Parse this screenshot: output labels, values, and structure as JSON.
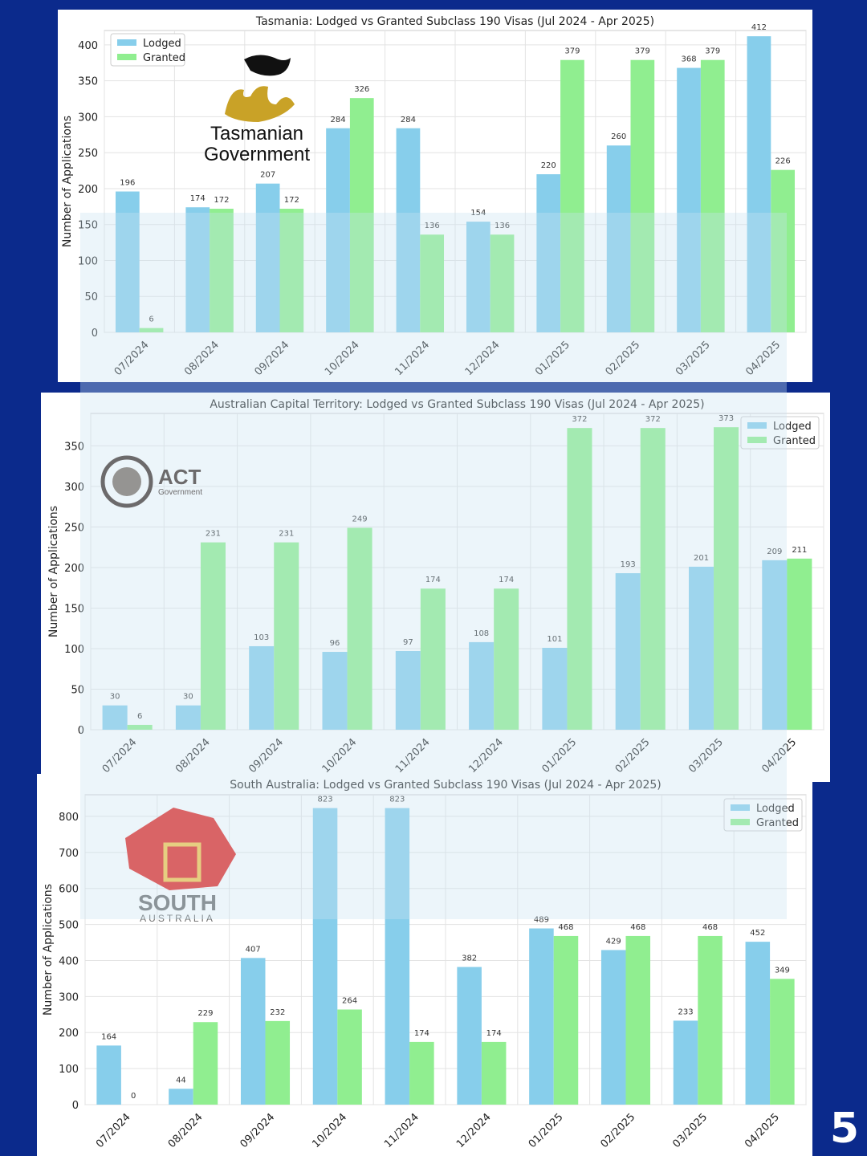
{
  "colors": {
    "lodged": "#87CEEB",
    "granted": "#90EE90",
    "background": "#0b2a8c"
  },
  "page_number": "5",
  "logos": [
    {
      "lines": [
        "Tasmanian",
        "Government"
      ]
    },
    {
      "lines": [
        "ACT",
        "Government"
      ]
    },
    {
      "lines": [
        "SOUTH",
        "AUSTRALIA"
      ]
    }
  ],
  "chart_data": [
    {
      "type": "bar",
      "title": "Tasmania: Lodged vs Granted Subclass 190 Visas (Jul 2024 - Apr 2025)",
      "xlabel": "",
      "ylabel": "Number of Applications",
      "categories": [
        "07/2024",
        "08/2024",
        "09/2024",
        "10/2024",
        "11/2024",
        "12/2024",
        "01/2025",
        "02/2025",
        "03/2025",
        "04/2025"
      ],
      "series": [
        {
          "name": "Lodged",
          "values": [
            196,
            174,
            207,
            284,
            284,
            154,
            220,
            260,
            368,
            412
          ]
        },
        {
          "name": "Granted",
          "values": [
            6,
            172,
            172,
            326,
            136,
            136,
            379,
            379,
            379,
            226
          ]
        }
      ],
      "ylim": [
        0,
        420
      ],
      "yticks": [
        0,
        50,
        100,
        150,
        200,
        250,
        300,
        350,
        400
      ],
      "grid": true,
      "legend": "top-left"
    },
    {
      "type": "bar",
      "title": "Australian Capital Territory: Lodged vs Granted Subclass 190 Visas (Jul 2024 - Apr 2025)",
      "xlabel": "",
      "ylabel": "Number of Applications",
      "categories": [
        "07/2024",
        "08/2024",
        "09/2024",
        "10/2024",
        "11/2024",
        "12/2024",
        "01/2025",
        "02/2025",
        "03/2025",
        "04/2025"
      ],
      "series": [
        {
          "name": "Lodged",
          "values": [
            30,
            30,
            103,
            96,
            97,
            108,
            101,
            193,
            201,
            209
          ]
        },
        {
          "name": "Granted",
          "values": [
            6,
            231,
            231,
            249,
            174,
            174,
            372,
            372,
            373,
            211
          ]
        }
      ],
      "ylim": [
        0,
        390
      ],
      "yticks": [
        0,
        50,
        100,
        150,
        200,
        250,
        300,
        350
      ],
      "grid": true,
      "legend": "top-right"
    },
    {
      "type": "bar",
      "title": "South Australia: Lodged vs Granted Subclass 190 Visas (Jul 2024 - Apr 2025)",
      "xlabel": "",
      "ylabel": "Number of Applications",
      "categories": [
        "07/2024",
        "08/2024",
        "09/2024",
        "10/2024",
        "11/2024",
        "12/2024",
        "01/2025",
        "02/2025",
        "03/2025",
        "04/2025"
      ],
      "series": [
        {
          "name": "Lodged",
          "values": [
            164,
            44,
            407,
            823,
            823,
            382,
            489,
            429,
            233,
            452
          ]
        },
        {
          "name": "Granted",
          "values": [
            0,
            229,
            232,
            264,
            174,
            174,
            468,
            468,
            468,
            349
          ]
        }
      ],
      "ylim": [
        0,
        860
      ],
      "yticks": [
        0,
        100,
        200,
        300,
        400,
        500,
        600,
        700,
        800
      ],
      "grid": true,
      "legend": "top-right"
    }
  ]
}
